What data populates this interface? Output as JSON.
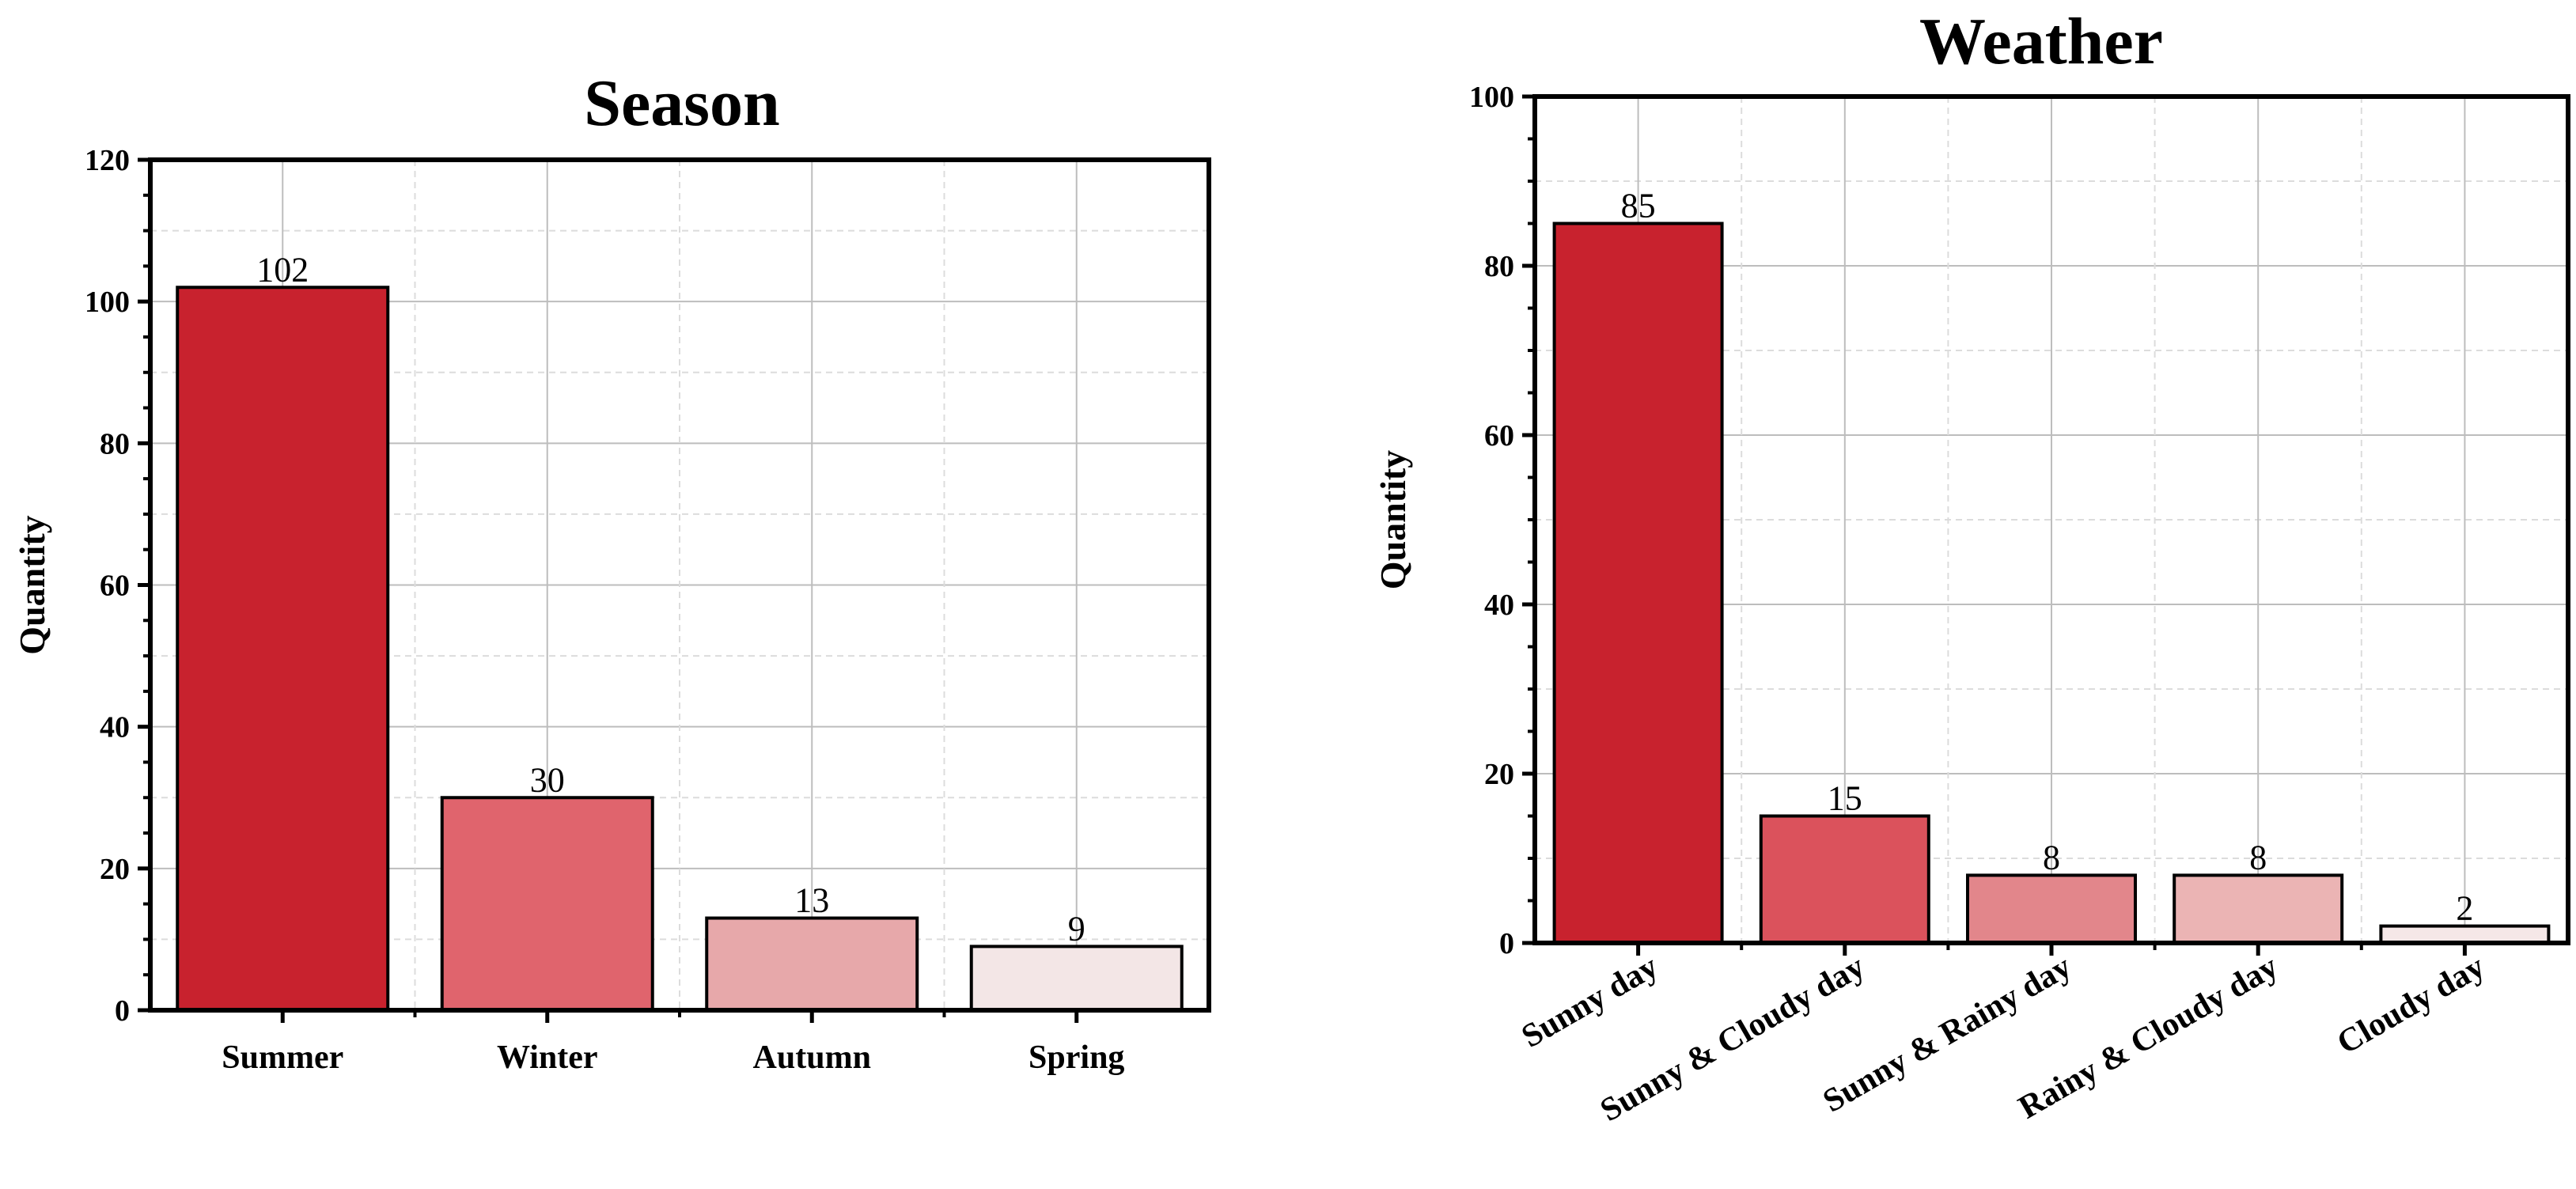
{
  "chart_data": [
    {
      "type": "bar",
      "title": "Season",
      "xlabel": "",
      "ylabel": "Quantity",
      "categories": [
        "Summer",
        "Winter",
        "Autumn",
        "Spring"
      ],
      "values": [
        102,
        30,
        13,
        9
      ],
      "data_labels": [
        "102",
        "30",
        "13",
        "9"
      ],
      "ylim": [
        0,
        120
      ],
      "yticks": [
        0,
        20,
        40,
        60,
        80,
        100,
        120
      ],
      "ytick_labels": [
        "0",
        "20",
        "40",
        "60",
        "80",
        "100",
        "120"
      ],
      "grid": true,
      "colors": [
        "#c8222e",
        "#e0646d",
        "#e7a8aa",
        "#f3e6e6"
      ],
      "xtick_rotation": 0
    },
    {
      "type": "bar",
      "title": "Weather",
      "xlabel": "",
      "ylabel": "Quantity",
      "categories": [
        "Sunny day",
        "Sunny & Cloudy day",
        "Sunny & Rainy day",
        "Rainy & Cloudy day",
        "Cloudy day"
      ],
      "values": [
        85,
        15,
        8,
        8,
        2
      ],
      "data_labels": [
        "85",
        "15",
        "8",
        "8",
        "2"
      ],
      "ylim": [
        0,
        100
      ],
      "yticks": [
        0,
        20,
        40,
        60,
        80,
        100
      ],
      "ytick_labels": [
        "0",
        "20",
        "40",
        "60",
        "80",
        "100"
      ],
      "grid": true,
      "colors": [
        "#c8222e",
        "#db525c",
        "#e2868b",
        "#ebb4b4",
        "#f5e7e7"
      ],
      "xtick_rotation": -30
    }
  ]
}
